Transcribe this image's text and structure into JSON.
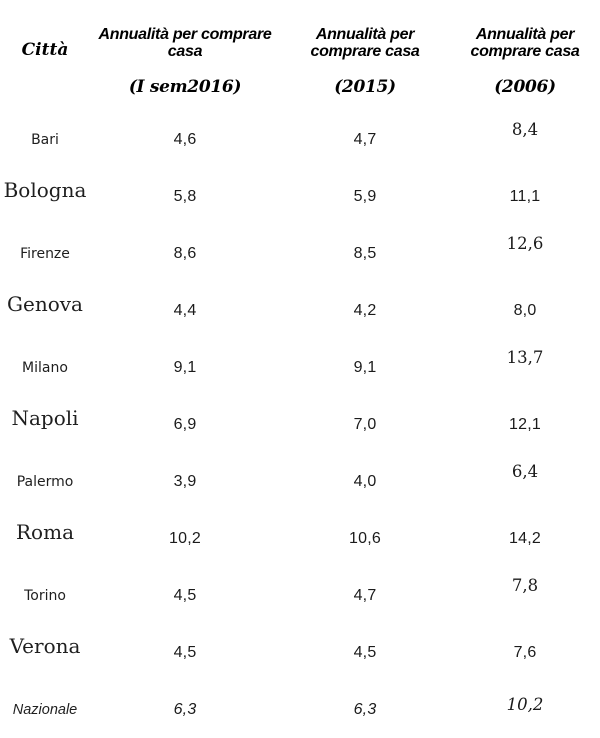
{
  "page": {
    "background_color": "#ffffff",
    "text_color": "#1b1b1b"
  },
  "table": {
    "columns": [
      {
        "label": "Città",
        "period": ""
      },
      {
        "label": "Annualità per comprare casa",
        "period": "(I sem2016)"
      },
      {
        "label": "Annualità per comprare casa",
        "period": "(2015)"
      },
      {
        "label": "Annualità per comprare casa",
        "period": "(2006)"
      }
    ],
    "rows": [
      {
        "city": "Bari",
        "values": [
          "4,6",
          "4,7",
          "8,4"
        ]
      },
      {
        "city": "Bologna",
        "values": [
          "5,8",
          "5,9",
          "11,1"
        ]
      },
      {
        "city": "Firenze",
        "values": [
          "8,6",
          "8,5",
          "12,6"
        ]
      },
      {
        "city": "Genova",
        "values": [
          "4,4",
          "4,2",
          "8,0"
        ]
      },
      {
        "city": "Milano",
        "values": [
          "9,1",
          "9,1",
          "13,7"
        ]
      },
      {
        "city": "Napoli",
        "values": [
          "6,9",
          "7,0",
          "12,1"
        ]
      },
      {
        "city": "Palermo",
        "values": [
          "3,9",
          "4,0",
          "6,4"
        ]
      },
      {
        "city": "Roma",
        "values": [
          "10,2",
          "10,6",
          "14,2"
        ]
      },
      {
        "city": "Torino",
        "values": [
          "4,5",
          "4,7",
          "7,8"
        ]
      },
      {
        "city": "Verona",
        "values": [
          "4,5",
          "4,5",
          "7,6"
        ]
      },
      {
        "city": "Nazionale",
        "values": [
          "6,3",
          "6,3",
          "10,2"
        ]
      }
    ]
  },
  "chart_data": {
    "type": "table",
    "title": "",
    "categories": [
      "Bari",
      "Bologna",
      "Firenze",
      "Genova",
      "Milano",
      "Napoli",
      "Palermo",
      "Roma",
      "Torino",
      "Verona",
      "Nazionale"
    ],
    "series": [
      {
        "name": "Annualità per comprare casa (I sem2016)",
        "values": [
          4.6,
          5.8,
          8.6,
          4.4,
          9.1,
          6.9,
          3.9,
          10.2,
          4.5,
          4.5,
          6.3
        ]
      },
      {
        "name": "Annualità per comprare casa (2015)",
        "values": [
          4.7,
          5.9,
          8.5,
          4.2,
          9.1,
          7.0,
          4.0,
          10.6,
          4.7,
          4.5,
          6.3
        ]
      },
      {
        "name": "Annualità per comprare casa (2006)",
        "values": [
          8.4,
          11.1,
          12.6,
          8.0,
          13.7,
          12.1,
          6.4,
          14.2,
          7.8,
          7.6,
          10.2
        ]
      }
    ],
    "layout": {
      "grid": false,
      "borders": false,
      "decimal_separator": ","
    }
  }
}
